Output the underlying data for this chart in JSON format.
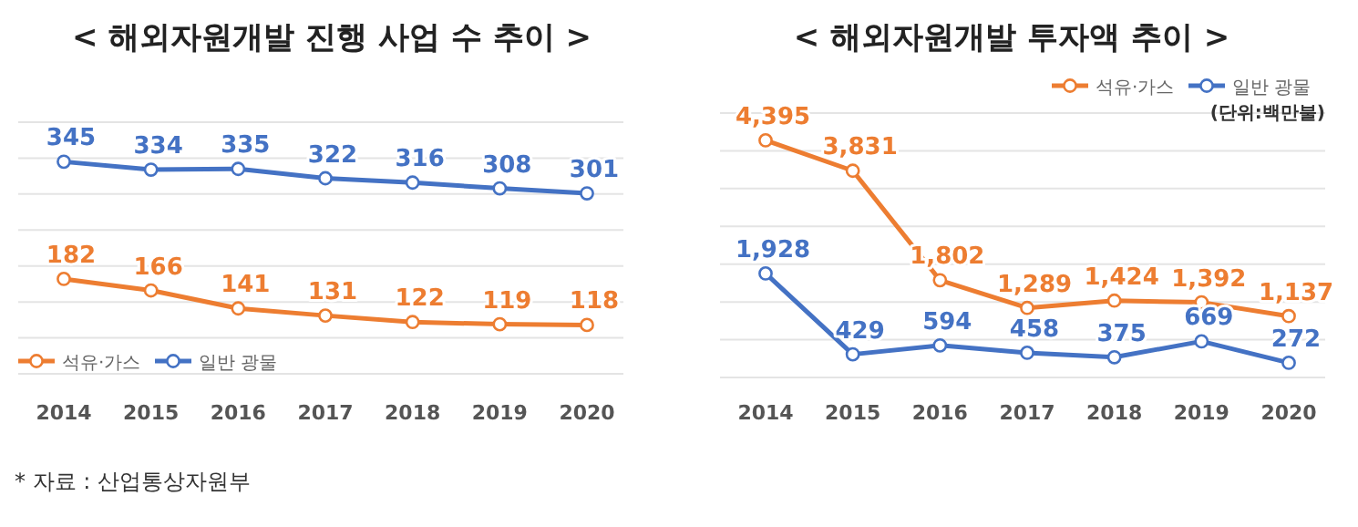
{
  "chart_data": [
    {
      "type": "line",
      "title": "< 해외자원개발 진행 사업 수 추이 >",
      "categories": [
        "2014",
        "2015",
        "2016",
        "2017",
        "2018",
        "2019",
        "2020"
      ],
      "series": [
        {
          "name": "석유·가스",
          "color": "#ed7d31",
          "values": [
            182,
            166,
            141,
            131,
            122,
            119,
            118
          ]
        },
        {
          "name": "일반 광물",
          "color": "#4472c4",
          "values": [
            345,
            334,
            335,
            322,
            316,
            308,
            301
          ]
        }
      ],
      "ylim": [
        50,
        400
      ],
      "yticks": [
        {
          "value": 50,
          "label": null
        },
        {
          "value": 100,
          "label": null
        },
        {
          "value": 150,
          "label": null
        },
        {
          "value": 200,
          "label": null
        },
        {
          "value": 250,
          "label": null
        },
        {
          "value": 300,
          "label": null
        },
        {
          "value": 350,
          "label": null
        },
        {
          "value": 400,
          "label": null
        }
      ],
      "grid": "y",
      "legend": "bottom left",
      "marker": "circle",
      "data_labels": true,
      "tick_labels": "x",
      "annotations": [
        "* 자료 : 산업통상자원부"
      ]
    },
    {
      "type": "line",
      "title": "< 해외자원개발 투자액 추이 >",
      "categories": [
        "2014",
        "2015",
        "2016",
        "2017",
        "2018",
        "2019",
        "2020"
      ],
      "series": [
        {
          "name": "석유·가스",
          "color": "#ed7d31",
          "values": [
            4395,
            3831,
            1802,
            1289,
            1424,
            1392,
            1137
          ],
          "value_labels": [
            "4,395",
            "3,831",
            "1,802",
            "1,289",
            "1,424",
            "1,392",
            "1,137"
          ]
        },
        {
          "name": "일반 광물",
          "color": "#4472c4",
          "values": [
            1928,
            429,
            594,
            458,
            375,
            669,
            272
          ],
          "value_labels": [
            "1,928",
            "429",
            "594",
            "458",
            "375",
            "669",
            "272"
          ]
        }
      ],
      "ylim": [
        0,
        4900
      ],
      "yticks": [
        {
          "value": 0,
          "label": null
        },
        {
          "value": 700,
          "label": null
        },
        {
          "value": 1400,
          "label": null
        },
        {
          "value": 2100,
          "label": null
        },
        {
          "value": 2800,
          "label": null
        },
        {
          "value": 3500,
          "label": null
        },
        {
          "value": 4200,
          "label": null
        },
        {
          "value": 4900,
          "label": null
        }
      ],
      "grid": "y",
      "legend": "top right",
      "marker": "circle",
      "tick_labels": "x",
      "annotations": [
        "(단위:백만불)"
      ]
    }
  ]
}
